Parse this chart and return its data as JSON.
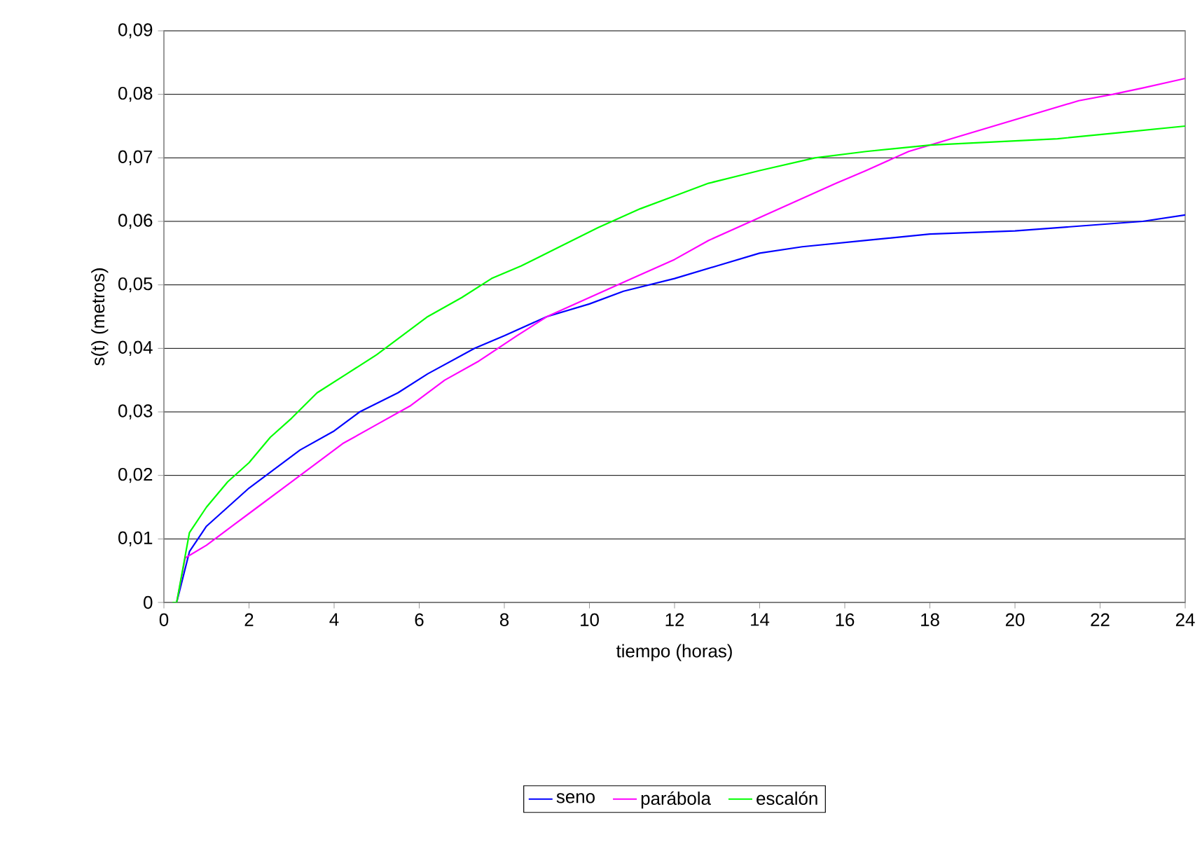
{
  "chart_data": {
    "type": "line",
    "xlabel": "tiempo (horas)",
    "ylabel": "s(t) (metros)",
    "xlim": [
      0,
      24
    ],
    "ylim": [
      0,
      0.09
    ],
    "xticks": [
      0,
      2,
      4,
      6,
      8,
      10,
      12,
      14,
      16,
      18,
      20,
      22,
      24
    ],
    "yticks": [
      0,
      {
        "value": 0.01,
        "label": "0,01"
      },
      {
        "value": 0.02,
        "label": "0,02"
      },
      {
        "value": 0.03,
        "label": "0,03"
      },
      {
        "value": 0.04,
        "label": "0,04"
      },
      {
        "value": 0.05,
        "label": "0,05"
      },
      {
        "value": 0.06,
        "label": "0,06"
      },
      {
        "value": 0.07,
        "label": "0,07"
      },
      {
        "value": 0.08,
        "label": "0,08"
      },
      {
        "value": 0.09,
        "label": "0,09"
      }
    ],
    "grid": "y",
    "legend": "bottom",
    "series": [
      {
        "name": "seno",
        "color": "#0000ff",
        "x": [
          0.2,
          0.3,
          0.6,
          1,
          1.5,
          2,
          2.6,
          3.2,
          4,
          4.6,
          5.5,
          6.2,
          7.3,
          8,
          9,
          10,
          10.8,
          12,
          13,
          14,
          15,
          16.5,
          18,
          20,
          21,
          22,
          23,
          24
        ],
        "values": [
          0,
          0,
          0.008,
          0.012,
          0.015,
          0.018,
          0.021,
          0.024,
          0.027,
          0.03,
          0.033,
          0.036,
          0.04,
          0.042,
          0.045,
          0.047,
          0.049,
          0.051,
          0.053,
          0.055,
          0.056,
          0.057,
          0.058,
          0.0585,
          0.059,
          0.0595,
          0.06,
          0.061
        ]
      },
      {
        "name": "parábola",
        "color": "#ff00ff",
        "x": [
          0.2,
          0.3,
          0.5,
          1,
          1.6,
          2.2,
          2.8,
          3.6,
          4.2,
          5,
          5.8,
          6.6,
          7.4,
          8.3,
          9,
          10,
          11,
          12,
          12.8,
          13.8,
          14.8,
          15.8,
          16.5,
          17.5,
          18.5,
          19.5,
          20.5,
          21.5,
          22.3,
          23,
          24
        ],
        "values": [
          0,
          0,
          0.007,
          0.009,
          0.012,
          0.015,
          0.018,
          0.022,
          0.025,
          0.028,
          0.031,
          0.035,
          0.038,
          0.042,
          0.045,
          0.048,
          0.051,
          0.054,
          0.057,
          0.06,
          0.063,
          0.066,
          0.068,
          0.071,
          0.073,
          0.075,
          0.077,
          0.079,
          0.08,
          0.081,
          0.0825
        ]
      },
      {
        "name": "escalón",
        "color": "#00ff00",
        "x": [
          0.2,
          0.3,
          0.6,
          1,
          1.5,
          2,
          2.5,
          3,
          3.6,
          4.3,
          5,
          5.6,
          6.2,
          7,
          7.7,
          8.4,
          9.3,
          10.2,
          11.2,
          12,
          12.8,
          14,
          15.3,
          16.5,
          18,
          19.5,
          21,
          22.5,
          24
        ],
        "values": [
          0,
          0,
          0.011,
          0.015,
          0.019,
          0.022,
          0.026,
          0.029,
          0.033,
          0.036,
          0.039,
          0.042,
          0.045,
          0.048,
          0.051,
          0.053,
          0.056,
          0.059,
          0.062,
          0.064,
          0.066,
          0.068,
          0.07,
          0.071,
          0.072,
          0.0725,
          0.073,
          0.074,
          0.075
        ]
      }
    ]
  }
}
